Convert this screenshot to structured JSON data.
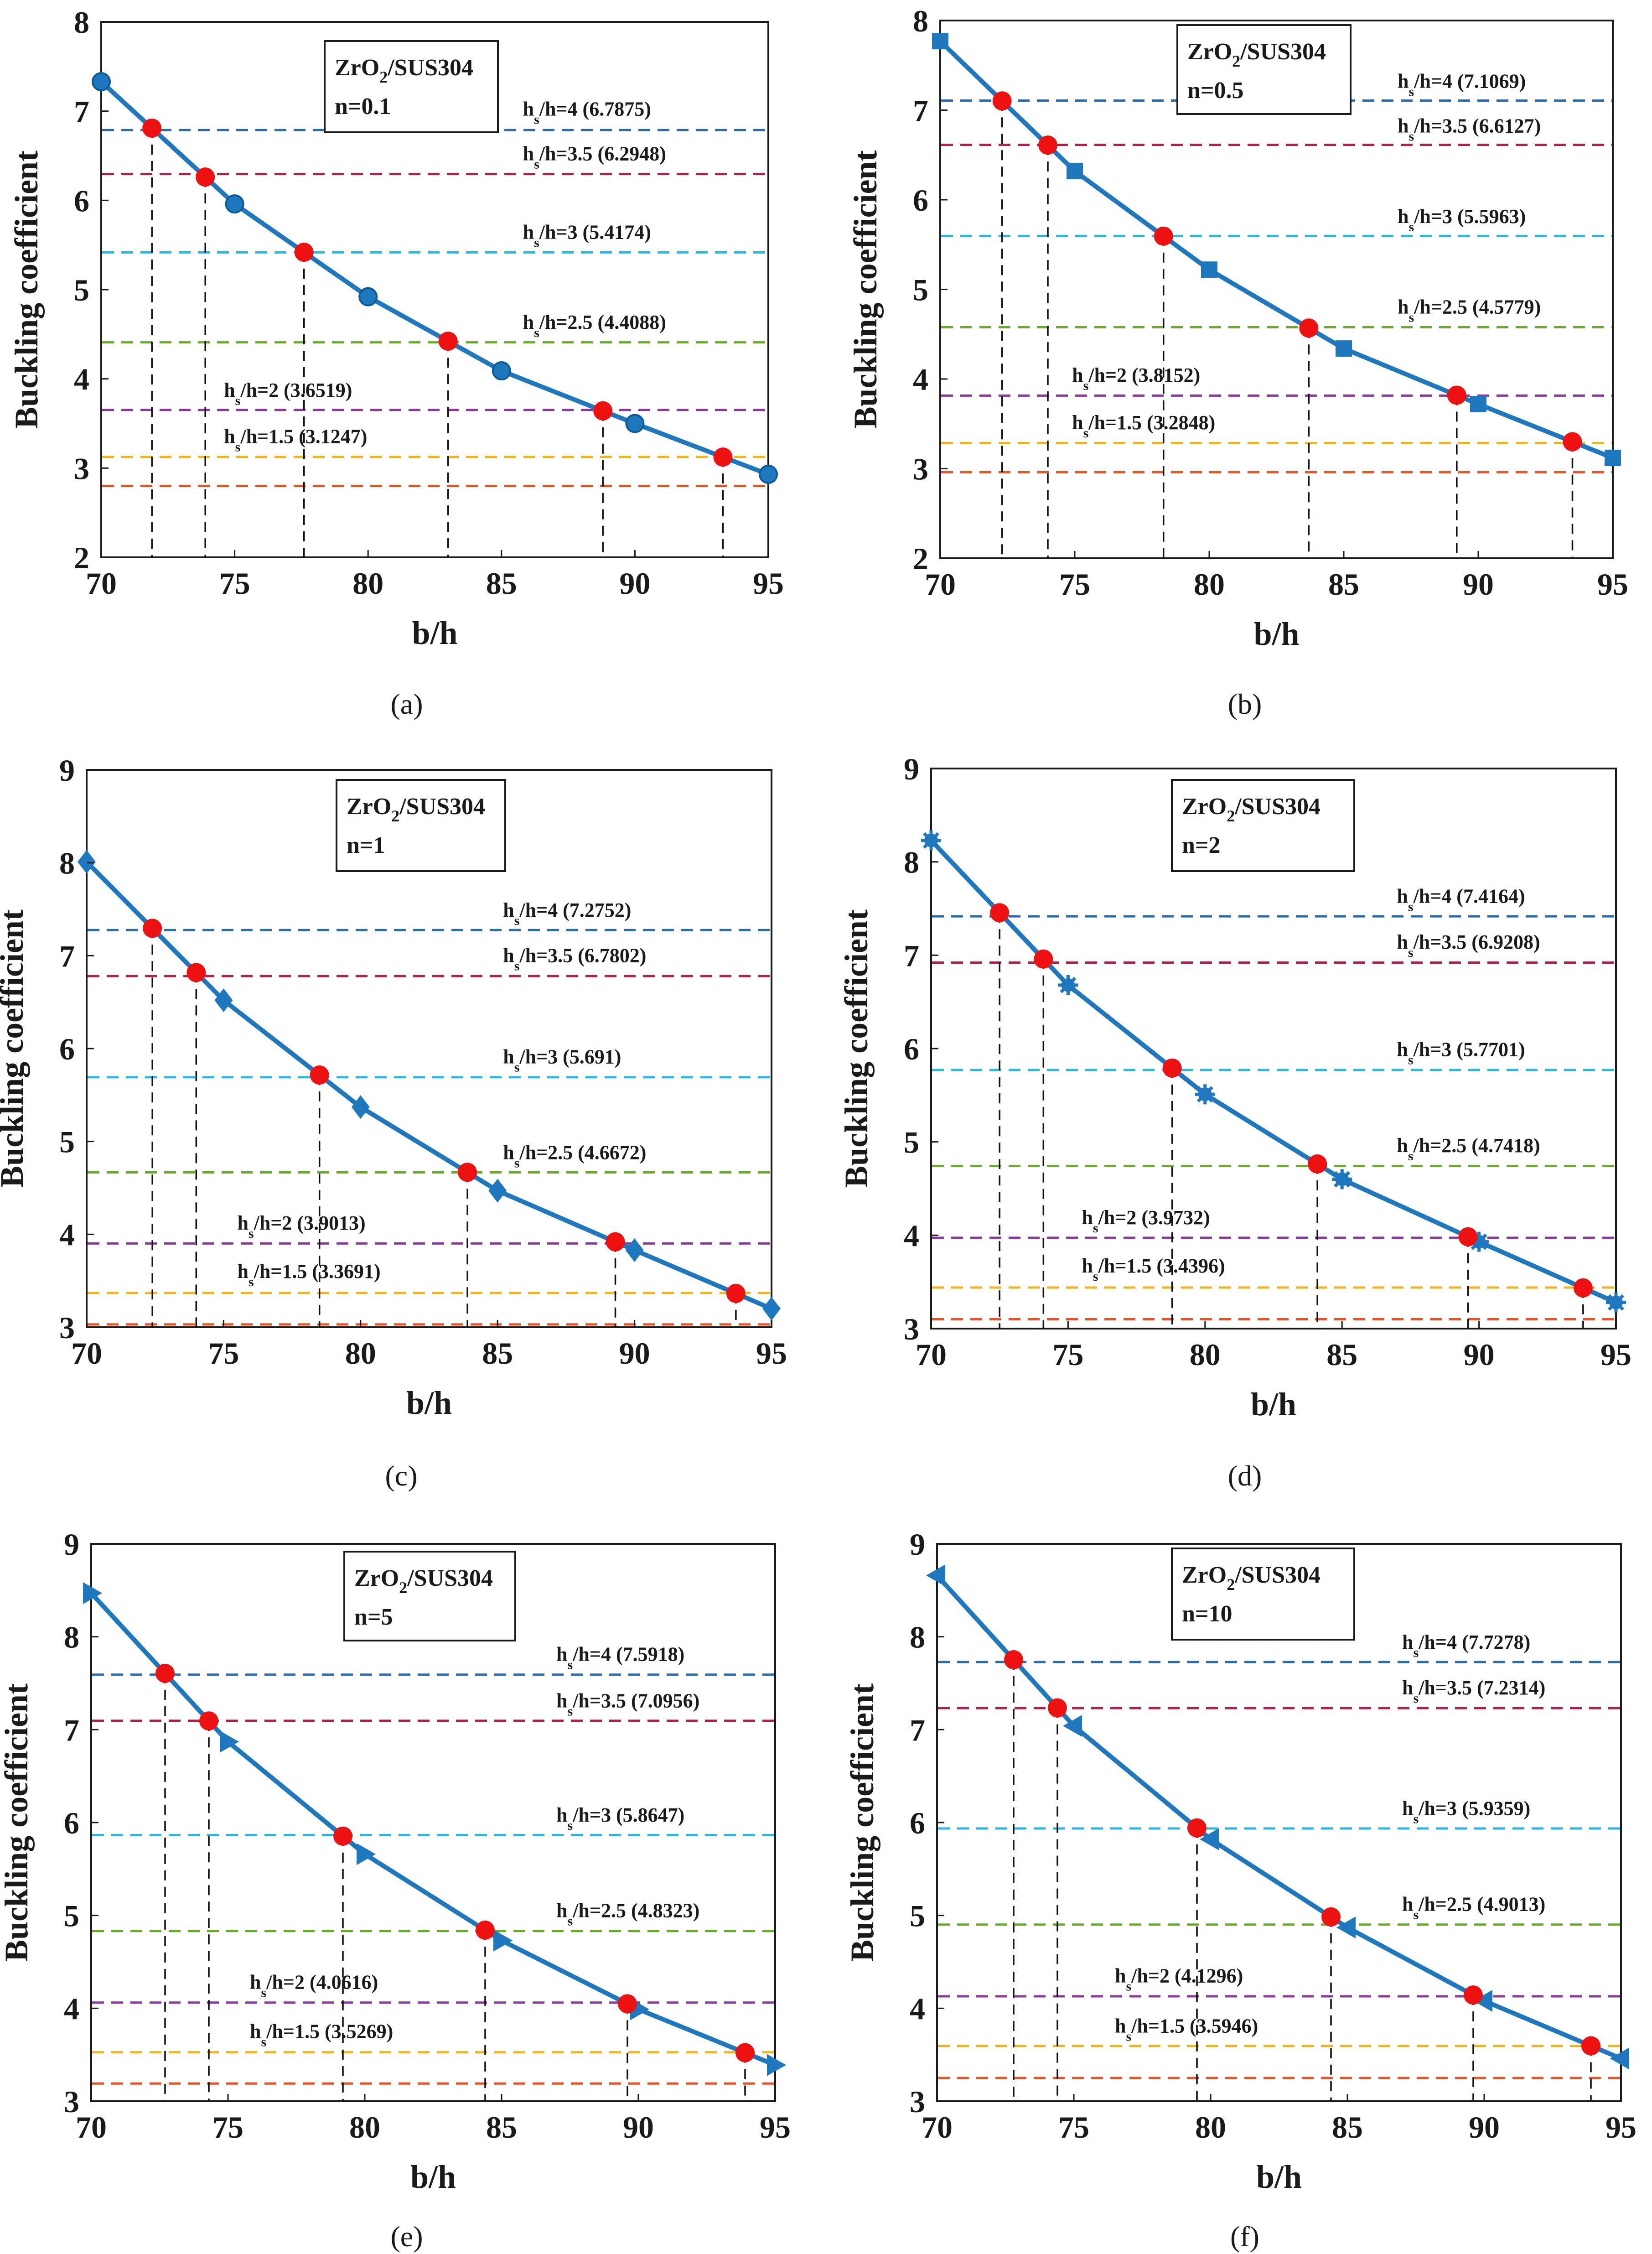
{
  "figure": {
    "panels": [
      "a",
      "b",
      "c",
      "d",
      "e",
      "f"
    ],
    "colors": {
      "curve": "#1f77bd",
      "marker_fill": "#ee1111",
      "projection": "#111111",
      "frame": "#1a1a1a",
      "ratio_lines": {
        "4": "#2b6cb0",
        "3.5": "#b0204b",
        "3": "#28b7e6",
        "2.5": "#6aaa2a",
        "2": "#8a3a9a",
        "1.5": "#f2b41a",
        "base": "#ee5022"
      }
    }
  },
  "chart_data": [
    {
      "panel": "a",
      "caption": "(a)",
      "type": "line",
      "title": "ZrO2/SUS304",
      "legend_material": "ZrO",
      "legend_material_sub": "2",
      "legend_material_rest": "/SUS304",
      "legend_index": "n=0.1",
      "xlabel": "b/h",
      "ylabel": "Buckling coefficient",
      "xlim": [
        70,
        95
      ],
      "ylim": [
        2,
        8
      ],
      "xticks": [
        70,
        75,
        80,
        85,
        90,
        95
      ],
      "yticks": [
        2,
        3,
        4,
        5,
        6,
        7,
        8
      ],
      "marker": "circle",
      "series": [
        {
          "name": "ZrO2/SUS304 n=0.1",
          "x": [
            70,
            75,
            80,
            85,
            90,
            95
          ],
          "values": [
            7.33,
            5.96,
            4.92,
            4.09,
            3.5,
            2.93
          ]
        }
      ],
      "reference_lines": [
        {
          "key": "4",
          "hs": "4",
          "value": 6.7875,
          "label_value": "6.7875",
          "b_h": 71.9,
          "label_x": 85.8,
          "label_y": 6.95
        },
        {
          "key": "3.5",
          "hs": "3.5",
          "value": 6.2948,
          "label_value": "6.2948",
          "b_h": 73.9,
          "label_x": 85.8,
          "label_y": 6.45
        },
        {
          "key": "3",
          "hs": "3",
          "value": 5.4174,
          "label_value": "5.4174",
          "b_h": 77.6,
          "label_x": 85.8,
          "label_y": 5.57
        },
        {
          "key": "2.5",
          "hs": "2.5",
          "value": 4.4088,
          "label_value": "4.4088",
          "b_h": 83.0,
          "label_x": 85.8,
          "label_y": 4.56
        },
        {
          "key": "2",
          "hs": "2",
          "value": 3.6519,
          "label_value": "3.6519",
          "b_h": 88.8,
          "label_x": 74.6,
          "label_y": 3.8
        },
        {
          "key": "1.5",
          "hs": "1.5",
          "value": 3.1247,
          "label_value": "3.1247",
          "b_h": 93.3,
          "label_x": 74.6,
          "label_y": 3.28
        }
      ],
      "base_line": 2.8
    },
    {
      "panel": "b",
      "caption": "(b)",
      "type": "line",
      "title": "ZrO2/SUS304",
      "legend_material": "ZrO",
      "legend_material_sub": "2",
      "legend_material_rest": "/SUS304",
      "legend_index": "n=0.5",
      "xlabel": "b/h",
      "ylabel": "Buckling coefficient",
      "xlim": [
        70,
        95
      ],
      "ylim": [
        2,
        8
      ],
      "xticks": [
        70,
        75,
        80,
        85,
        90,
        95
      ],
      "yticks": [
        2,
        3,
        4,
        5,
        6,
        7,
        8
      ],
      "marker": "square",
      "series": [
        {
          "name": "ZrO2/SUS304 n=0.5",
          "x": [
            70,
            75,
            80,
            85,
            90,
            95
          ],
          "values": [
            7.77,
            6.32,
            5.22,
            4.34,
            3.72,
            3.12
          ]
        }
      ],
      "reference_lines": [
        {
          "key": "4",
          "hs": "4",
          "value": 7.1069,
          "label_value": "7.1069",
          "b_h": 72.3,
          "label_x": 87.0,
          "label_y": 7.25
        },
        {
          "key": "3.5",
          "hs": "3.5",
          "value": 6.6127,
          "label_value": "6.6127",
          "b_h": 74.0,
          "label_x": 87.0,
          "label_y": 6.75
        },
        {
          "key": "3",
          "hs": "3",
          "value": 5.5963,
          "label_value": "5.5963",
          "b_h": 78.3,
          "label_x": 87.0,
          "label_y": 5.74
        },
        {
          "key": "2.5",
          "hs": "2.5",
          "value": 4.5779,
          "label_value": "4.5779",
          "b_h": 83.7,
          "label_x": 87.0,
          "label_y": 4.73
        },
        {
          "key": "2",
          "hs": "2",
          "value": 3.8152,
          "label_value": "3.8152",
          "b_h": 89.2,
          "label_x": 74.9,
          "label_y": 3.97
        },
        {
          "key": "1.5",
          "hs": "1.5",
          "value": 3.2848,
          "label_value": "3.2848",
          "b_h": 93.5,
          "label_x": 74.9,
          "label_y": 3.44
        }
      ],
      "base_line": 2.96
    },
    {
      "panel": "c",
      "caption": "(c)",
      "type": "line",
      "title": "ZrO2/SUS304",
      "legend_material": "ZrO",
      "legend_material_sub": "2",
      "legend_material_rest": "/SUS304",
      "legend_index": "n=1",
      "xlabel": "b/h",
      "ylabel": "Buckling coefficient",
      "xlim": [
        70,
        95
      ],
      "ylim": [
        3,
        9
      ],
      "xticks": [
        70,
        75,
        80,
        85,
        90,
        95
      ],
      "yticks": [
        3,
        4,
        5,
        6,
        7,
        8,
        9
      ],
      "marker": "diamond",
      "series": [
        {
          "name": "ZrO2/SUS304 n=1",
          "x": [
            70,
            75,
            80,
            85,
            90,
            95
          ],
          "values": [
            8.01,
            6.52,
            5.37,
            4.47,
            3.83,
            3.2
          ]
        }
      ],
      "reference_lines": [
        {
          "key": "4",
          "hs": "4",
          "value": 7.2752,
          "label_value": "7.2752",
          "b_h": 72.4,
          "label_x": 85.2,
          "label_y": 7.42
        },
        {
          "key": "3.5",
          "hs": "3.5",
          "value": 6.7802,
          "label_value": "6.7802",
          "b_h": 74.0,
          "label_x": 85.2,
          "label_y": 6.93
        },
        {
          "key": "3",
          "hs": "3",
          "value": 5.691,
          "label_value": "5.691",
          "b_h": 78.5,
          "label_x": 85.2,
          "label_y": 5.84
        },
        {
          "key": "2.5",
          "hs": "2.5",
          "value": 4.6672,
          "label_value": "4.6672",
          "b_h": 83.9,
          "label_x": 85.2,
          "label_y": 4.81
        },
        {
          "key": "2",
          "hs": "2",
          "value": 3.9013,
          "label_value": "3.9013",
          "b_h": 89.3,
          "label_x": 75.5,
          "label_y": 4.05
        },
        {
          "key": "1.5",
          "hs": "1.5",
          "value": 3.3691,
          "label_value": "3.3691",
          "b_h": 93.7,
          "label_x": 75.5,
          "label_y": 3.53
        }
      ],
      "base_line": 3.03
    },
    {
      "panel": "d",
      "caption": "(d)",
      "type": "line",
      "title": "ZrO2/SUS304",
      "legend_material": "ZrO",
      "legend_material_sub": "2",
      "legend_material_rest": "/SUS304",
      "legend_index": "n=2",
      "xlabel": "b/h",
      "ylabel": "Buckling coefficient",
      "xlim": [
        70,
        95
      ],
      "ylim": [
        3,
        9
      ],
      "xticks": [
        70,
        75,
        80,
        85,
        90,
        95
      ],
      "yticks": [
        3,
        4,
        5,
        6,
        7,
        8,
        9
      ],
      "marker": "asterisk",
      "series": [
        {
          "name": "ZrO2/SUS304 n=2",
          "x": [
            70,
            75,
            80,
            85,
            90,
            95
          ],
          "values": [
            8.23,
            6.68,
            5.51,
            4.6,
            3.93,
            3.28
          ]
        }
      ],
      "reference_lines": [
        {
          "key": "4",
          "hs": "4",
          "value": 7.4164,
          "label_value": "7.4164",
          "b_h": 72.5,
          "label_x": 87.0,
          "label_y": 7.56
        },
        {
          "key": "3.5",
          "hs": "3.5",
          "value": 6.9208,
          "label_value": "6.9208",
          "b_h": 74.1,
          "label_x": 87.0,
          "label_y": 7.07
        },
        {
          "key": "3",
          "hs": "3",
          "value": 5.7701,
          "label_value": "5.7701",
          "b_h": 78.8,
          "label_x": 87.0,
          "label_y": 5.92
        },
        {
          "key": "2.5",
          "hs": "2.5",
          "value": 4.7418,
          "label_value": "4.7418",
          "b_h": 84.1,
          "label_x": 87.0,
          "label_y": 4.89
        },
        {
          "key": "2",
          "hs": "2",
          "value": 3.9732,
          "label_value": "3.9732",
          "b_h": 89.6,
          "label_x": 75.5,
          "label_y": 4.12
        },
        {
          "key": "1.5",
          "hs": "1.5",
          "value": 3.4396,
          "label_value": "3.4396",
          "b_h": 93.8,
          "label_x": 75.5,
          "label_y": 3.6
        }
      ],
      "base_line": 3.1
    },
    {
      "panel": "e",
      "caption": "(e)",
      "type": "line",
      "title": "ZrO2/SUS304",
      "legend_material": "ZrO",
      "legend_material_sub": "2",
      "legend_material_rest": "/SUS304",
      "legend_index": "n=5",
      "xlabel": "b/h",
      "ylabel": "Buckling coefficient",
      "xlim": [
        70,
        95
      ],
      "ylim": [
        3,
        9
      ],
      "xticks": [
        70,
        75,
        80,
        85,
        90,
        95
      ],
      "yticks": [
        3,
        4,
        5,
        6,
        7,
        8,
        9
      ],
      "marker": "triangle-right",
      "series": [
        {
          "name": "ZrO2/SUS304 n=5",
          "x": [
            70,
            75,
            80,
            85,
            90,
            95
          ],
          "values": [
            8.47,
            6.87,
            5.66,
            4.73,
            3.99,
            3.39
          ]
        }
      ],
      "reference_lines": [
        {
          "key": "4",
          "hs": "4",
          "value": 7.5918,
          "label_value": "7.5918",
          "b_h": 72.7,
          "label_x": 87.0,
          "label_y": 7.74
        },
        {
          "key": "3.5",
          "hs": "3.5",
          "value": 7.0956,
          "label_value": "7.0956",
          "b_h": 74.3,
          "label_x": 87.0,
          "label_y": 7.24
        },
        {
          "key": "3",
          "hs": "3",
          "value": 5.8647,
          "label_value": "5.8647",
          "b_h": 79.2,
          "label_x": 87.0,
          "label_y": 6.01
        },
        {
          "key": "2.5",
          "hs": "2.5",
          "value": 4.8323,
          "label_value": "4.8323",
          "b_h": 84.4,
          "label_x": 87.0,
          "label_y": 4.98
        },
        {
          "key": "2",
          "hs": "2",
          "value": 4.0616,
          "label_value": "4.0616",
          "b_h": 89.6,
          "label_x": 75.8,
          "label_y": 4.21
        },
        {
          "key": "1.5",
          "hs": "1.5",
          "value": 3.5269,
          "label_value": "3.5269",
          "b_h": 93.9,
          "label_x": 75.8,
          "label_y": 3.68
        }
      ],
      "base_line": 3.19
    },
    {
      "panel": "f",
      "caption": "(f)",
      "type": "line",
      "title": "ZrO2/SUS304",
      "legend_material": "ZrO",
      "legend_material_sub": "2",
      "legend_material_rest": "/SUS304",
      "legend_index": "n=10",
      "xlabel": "b/h",
      "ylabel": "Buckling coefficient",
      "xlim": [
        70,
        95
      ],
      "ylim": [
        3,
        9
      ],
      "xticks": [
        70,
        75,
        80,
        85,
        90,
        95
      ],
      "yticks": [
        3,
        4,
        5,
        6,
        7,
        8,
        9
      ],
      "marker": "triangle-left",
      "series": [
        {
          "name": "ZrO2/SUS304 n=10",
          "x": [
            70,
            75,
            80,
            85,
            90,
            95
          ],
          "values": [
            8.66,
            7.04,
            5.82,
            4.87,
            4.08,
            3.46
          ]
        }
      ],
      "reference_lines": [
        {
          "key": "4",
          "hs": "4",
          "value": 7.7278,
          "label_value": "7.7278",
          "b_h": 72.8,
          "label_x": 87.0,
          "label_y": 7.87
        },
        {
          "key": "3.5",
          "hs": "3.5",
          "value": 7.2314,
          "label_value": "7.2314",
          "b_h": 74.4,
          "label_x": 87.0,
          "label_y": 7.38
        },
        {
          "key": "3",
          "hs": "3",
          "value": 5.9359,
          "label_value": "5.9359",
          "b_h": 79.5,
          "label_x": 87.0,
          "label_y": 6.08
        },
        {
          "key": "2.5",
          "hs": "2.5",
          "value": 4.9013,
          "label_value": "4.9013",
          "b_h": 84.4,
          "label_x": 87.0,
          "label_y": 5.05
        },
        {
          "key": "2",
          "hs": "2",
          "value": 4.1296,
          "label_value": "4.1296",
          "b_h": 89.6,
          "label_x": 76.5,
          "label_y": 4.28
        },
        {
          "key": "1.5",
          "hs": "1.5",
          "value": 3.5946,
          "label_value": "3.5946",
          "b_h": 93.9,
          "label_x": 76.5,
          "label_y": 3.74
        }
      ],
      "base_line": 3.25
    }
  ]
}
